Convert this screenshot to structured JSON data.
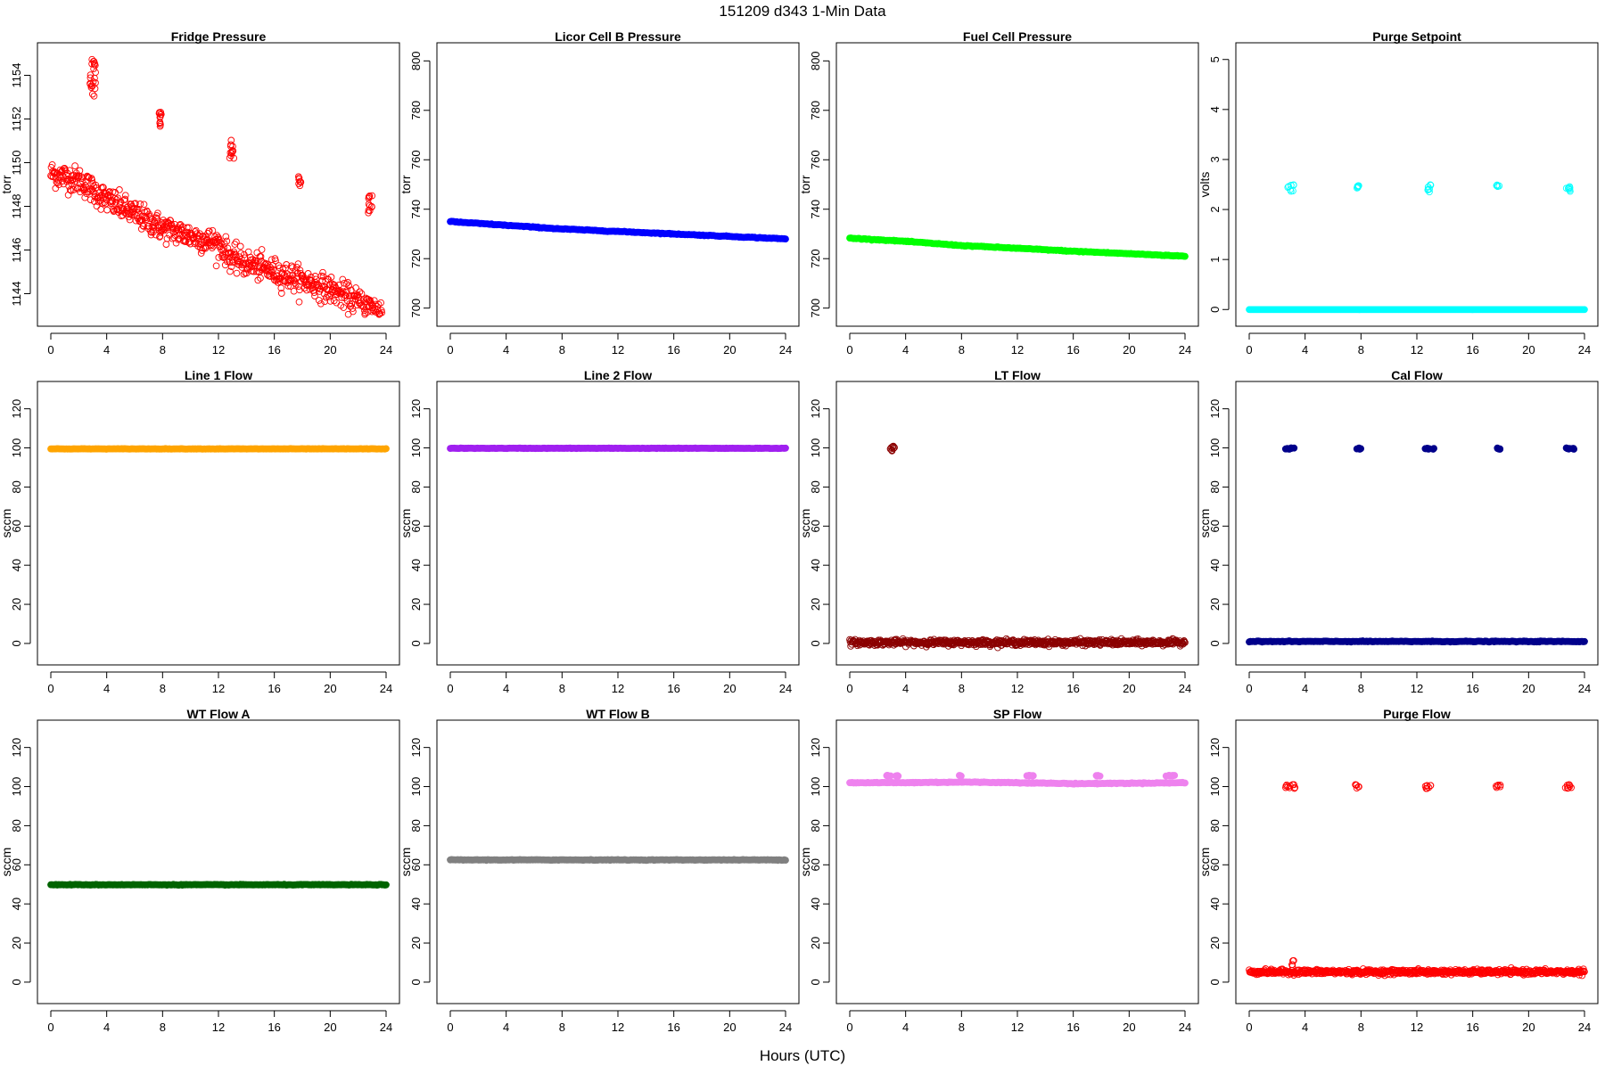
{
  "title": "151209   d343   1-Min Data",
  "xlabel": "Hours (UTC)",
  "x_ticks": [
    0,
    4,
    8,
    12,
    16,
    20,
    24
  ],
  "chart_data": [
    {
      "type": "scatter",
      "title": "Fridge Pressure",
      "ylabel": "torr",
      "xlim": [
        0,
        24
      ],
      "ylim": [
        1143.0,
        1155.0
      ],
      "y_ticks": [
        1144,
        1146,
        1148,
        1150,
        1152,
        1154
      ],
      "color": "#ff0000",
      "marker": "open",
      "series": [
        {
          "kind": "trend",
          "x": [
            0,
            2,
            4,
            8,
            12,
            13,
            16,
            20,
            22.8,
            23.7
          ],
          "y": [
            1149.5,
            1149.2,
            1148.3,
            1147.0,
            1146.3,
            1145.6,
            1145.0,
            1144.2,
            1143.4,
            1143.2
          ],
          "noise": 0.55
        },
        {
          "kind": "cluster",
          "x": [
            2.8,
            3.2
          ],
          "y": [
            1153.0,
            1155.0
          ],
          "n": 22
        },
        {
          "kind": "cluster",
          "x": [
            7.7,
            7.9
          ],
          "y": [
            1151.4,
            1152.4
          ],
          "n": 12
        },
        {
          "kind": "cluster",
          "x": [
            12.8,
            13.1
          ],
          "y": [
            1150.2,
            1151.1
          ],
          "n": 12
        },
        {
          "kind": "cluster",
          "x": [
            17.7,
            17.9
          ],
          "y": [
            1148.9,
            1149.5
          ],
          "n": 8
        },
        {
          "kind": "cluster",
          "x": [
            22.7,
            23.0
          ],
          "y": [
            1147.7,
            1148.6
          ],
          "n": 12
        }
      ]
    },
    {
      "type": "scatter",
      "title": "Licor Cell B Pressure",
      "ylabel": "torr",
      "xlim": [
        0,
        24
      ],
      "ylim": [
        697,
        803
      ],
      "y_ticks": [
        700,
        720,
        740,
        760,
        780,
        800
      ],
      "color": "#0000ff",
      "marker": "filled",
      "series": [
        {
          "kind": "trend",
          "x": [
            0,
            4,
            8,
            12,
            16,
            20,
            24
          ],
          "y": [
            735.0,
            733.5,
            732.0,
            731.0,
            730.0,
            729.0,
            728.0
          ],
          "noise": 0.15
        }
      ]
    },
    {
      "type": "scatter",
      "title": "Fuel Cell Pressure",
      "ylabel": "torr",
      "xlim": [
        0,
        24
      ],
      "ylim": [
        697,
        803
      ],
      "y_ticks": [
        700,
        720,
        740,
        760,
        780,
        800
      ],
      "color": "#00ff00",
      "marker": "filled",
      "series": [
        {
          "kind": "trend",
          "x": [
            0,
            4,
            8,
            12,
            16,
            20,
            24
          ],
          "y": [
            728.3,
            727.0,
            725.3,
            724.2,
            723.0,
            722.0,
            721.0
          ],
          "noise": 0.15
        }
      ]
    },
    {
      "type": "scatter",
      "title": "Purge Setpoint",
      "ylabel": "volts",
      "xlim": [
        0,
        24
      ],
      "ylim": [
        -0.12,
        5.12
      ],
      "y_ticks": [
        0,
        1,
        2,
        3,
        4,
        5
      ],
      "color": "#00ffff",
      "marker": "open",
      "series": [
        {
          "kind": "trend",
          "x": [
            0,
            24
          ],
          "y": [
            0.0,
            0.0
          ],
          "noise": 0.0
        },
        {
          "kind": "cluster",
          "x": [
            2.7,
            3.2
          ],
          "y": [
            2.35,
            2.5
          ],
          "n": 8
        },
        {
          "kind": "cluster",
          "x": [
            7.7,
            7.9
          ],
          "y": [
            2.42,
            2.5
          ],
          "n": 6
        },
        {
          "kind": "cluster",
          "x": [
            12.7,
            13.0
          ],
          "y": [
            2.35,
            2.5
          ],
          "n": 7
        },
        {
          "kind": "cluster",
          "x": [
            17.7,
            17.9
          ],
          "y": [
            2.42,
            2.5
          ],
          "n": 6
        },
        {
          "kind": "cluster",
          "x": [
            22.7,
            23.0
          ],
          "y": [
            2.35,
            2.5
          ],
          "n": 7
        }
      ]
    },
    {
      "type": "scatter",
      "title": "Line 1 Flow",
      "ylabel": "sccm",
      "xlim": [
        0,
        24
      ],
      "ylim": [
        -5.5,
        128.5
      ],
      "y_ticks": [
        0,
        20,
        40,
        60,
        80,
        100,
        120
      ],
      "color": "#ffa500",
      "marker": "filled",
      "series": [
        {
          "kind": "trend",
          "x": [
            0,
            24
          ],
          "y": [
            99.5,
            99.5
          ],
          "noise": 0.1
        }
      ]
    },
    {
      "type": "scatter",
      "title": "Line 2 Flow",
      "ylabel": "sccm",
      "xlim": [
        0,
        24
      ],
      "ylim": [
        -5.5,
        128.5
      ],
      "y_ticks": [
        0,
        20,
        40,
        60,
        80,
        100,
        120
      ],
      "color": "#a020f0",
      "marker": "filled",
      "series": [
        {
          "kind": "trend",
          "x": [
            0,
            24
          ],
          "y": [
            99.8,
            99.8
          ],
          "noise": 0.1
        }
      ]
    },
    {
      "type": "scatter",
      "title": "LT Flow",
      "ylabel": "sccm",
      "xlim": [
        0,
        24
      ],
      "ylim": [
        -5.5,
        128.5
      ],
      "y_ticks": [
        0,
        20,
        40,
        60,
        80,
        100,
        120
      ],
      "color": "#8b0000",
      "marker": "open",
      "series": [
        {
          "kind": "trend",
          "x": [
            0,
            24
          ],
          "y": [
            0.5,
            0.5
          ],
          "noise": 1.3
        },
        {
          "kind": "cluster",
          "x": [
            2.9,
            3.2
          ],
          "y": [
            97.5,
            101.5
          ],
          "n": 10
        }
      ]
    },
    {
      "type": "scatter",
      "title": "Cal Flow",
      "ylabel": "sccm",
      "xlim": [
        0,
        24
      ],
      "ylim": [
        -5.5,
        128.5
      ],
      "y_ticks": [
        0,
        20,
        40,
        60,
        80,
        100,
        120
      ],
      "color": "#00008b",
      "marker": "filled",
      "series": [
        {
          "kind": "trend",
          "x": [
            0,
            24
          ],
          "y": [
            1.0,
            1.0
          ],
          "noise": 0.2
        },
        {
          "kind": "cluster",
          "x": [
            2.6,
            3.3
          ],
          "y": [
            99.3,
            100.0
          ],
          "n": 10
        },
        {
          "kind": "cluster",
          "x": [
            7.7,
            8.0
          ],
          "y": [
            99.3,
            100.0
          ],
          "n": 6
        },
        {
          "kind": "cluster",
          "x": [
            12.6,
            13.3
          ],
          "y": [
            99.3,
            100.0
          ],
          "n": 10
        },
        {
          "kind": "cluster",
          "x": [
            17.7,
            18.0
          ],
          "y": [
            99.3,
            100.0
          ],
          "n": 6
        },
        {
          "kind": "cluster",
          "x": [
            22.6,
            23.3
          ],
          "y": [
            99.3,
            100.0
          ],
          "n": 10
        }
      ]
    },
    {
      "type": "scatter",
      "title": "WT Flow A",
      "ylabel": "sccm",
      "xlim": [
        0,
        24
      ],
      "ylim": [
        -5.5,
        128.5
      ],
      "y_ticks": [
        0,
        20,
        40,
        60,
        80,
        100,
        120
      ],
      "color": "#006400",
      "marker": "filled",
      "series": [
        {
          "kind": "trend",
          "x": [
            0,
            24
          ],
          "y": [
            49.8,
            49.8
          ],
          "noise": 0.15
        }
      ]
    },
    {
      "type": "scatter",
      "title": "WT Flow B",
      "ylabel": "sccm",
      "xlim": [
        0,
        24
      ],
      "ylim": [
        -5.5,
        128.5
      ],
      "y_ticks": [
        0,
        20,
        40,
        60,
        80,
        100,
        120
      ],
      "color": "#808080",
      "marker": "filled",
      "series": [
        {
          "kind": "trend",
          "x": [
            0,
            24
          ],
          "y": [
            62.5,
            62.5
          ],
          "noise": 0.15
        }
      ]
    },
    {
      "type": "scatter",
      "title": "SP Flow",
      "ylabel": "sccm",
      "xlim": [
        0,
        24
      ],
      "ylim": [
        -5.5,
        128.5
      ],
      "y_ticks": [
        0,
        20,
        40,
        60,
        80,
        100,
        120
      ],
      "color": "#ee82ee",
      "marker": "filled",
      "series": [
        {
          "kind": "trend",
          "x": [
            0,
            4,
            8,
            12,
            16,
            20,
            24
          ],
          "y": [
            102.0,
            102.0,
            102.3,
            102.0,
            101.5,
            101.7,
            102.0
          ],
          "noise": 0.2
        },
        {
          "kind": "cluster",
          "x": [
            2.5,
            3.5
          ],
          "y": [
            105.3,
            105.8
          ],
          "n": 10
        },
        {
          "kind": "cluster",
          "x": [
            7.7,
            8.0
          ],
          "y": [
            105.3,
            105.8
          ],
          "n": 4
        },
        {
          "kind": "cluster",
          "x": [
            12.5,
            13.3
          ],
          "y": [
            105.3,
            105.8
          ],
          "n": 8
        },
        {
          "kind": "cluster",
          "x": [
            17.6,
            18.0
          ],
          "y": [
            105.3,
            105.8
          ],
          "n": 4
        },
        {
          "kind": "cluster",
          "x": [
            22.6,
            23.3
          ],
          "y": [
            105.3,
            105.8
          ],
          "n": 8
        }
      ]
    },
    {
      "type": "scatter",
      "title": "Purge Flow",
      "ylabel": "sccm",
      "xlim": [
        0,
        24
      ],
      "ylim": [
        -5.5,
        128.5
      ],
      "y_ticks": [
        0,
        20,
        40,
        60,
        80,
        100,
        120
      ],
      "color": "#ff0000",
      "marker": "open",
      "series": [
        {
          "kind": "trend",
          "x": [
            0,
            24
          ],
          "y": [
            5.2,
            5.2
          ],
          "noise": 1.1
        },
        {
          "kind": "cluster",
          "x": [
            2.9,
            3.2
          ],
          "y": [
            8.0,
            11.0
          ],
          "n": 5
        },
        {
          "kind": "cluster",
          "x": [
            2.6,
            3.3
          ],
          "y": [
            99.0,
            101.0
          ],
          "n": 10
        },
        {
          "kind": "cluster",
          "x": [
            7.6,
            8.0
          ],
          "y": [
            99.0,
            101.0
          ],
          "n": 6
        },
        {
          "kind": "cluster",
          "x": [
            12.6,
            13.1
          ],
          "y": [
            99.0,
            101.0
          ],
          "n": 8
        },
        {
          "kind": "cluster",
          "x": [
            17.6,
            18.0
          ],
          "y": [
            99.0,
            101.0
          ],
          "n": 6
        },
        {
          "kind": "cluster",
          "x": [
            22.6,
            23.2
          ],
          "y": [
            99.0,
            101.0
          ],
          "n": 8
        }
      ]
    }
  ]
}
